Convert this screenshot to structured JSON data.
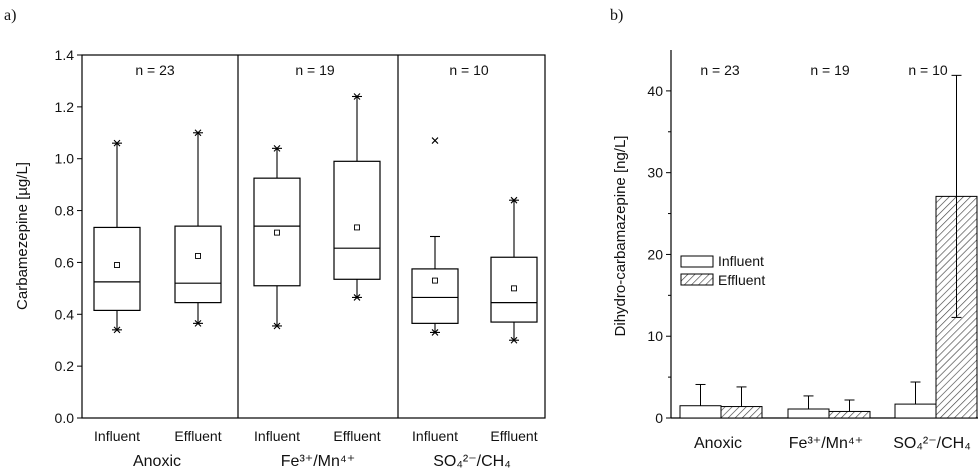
{
  "panels": [
    {
      "label": "a)",
      "chart_data": {
        "type": "box",
        "ylabel": "Carbamezepine [µg/L]",
        "ylim": [
          0,
          1.4
        ],
        "yticks": [
          0.0,
          0.2,
          0.4,
          0.6,
          0.8,
          1.0,
          1.2,
          1.4
        ],
        "groups": [
          {
            "name": "Anoxic",
            "n_label": "n = 23",
            "boxes": [
              {
                "name": "Influent",
                "whisker_low": 0.34,
                "q1": 0.415,
                "median": 0.525,
                "q3": 0.735,
                "whisker_high": 1.06,
                "mean": 0.59,
                "outliers": [
                  0.34,
                  1.06
                ]
              },
              {
                "name": "Effluent",
                "whisker_low": 0.365,
                "q1": 0.445,
                "median": 0.52,
                "q3": 0.74,
                "whisker_high": 1.1,
                "mean": 0.625,
                "outliers": [
                  0.365,
                  1.1
                ]
              }
            ]
          },
          {
            "name": "Fe³⁺/Mn⁴⁺",
            "n_label": "n = 19",
            "boxes": [
              {
                "name": "Influent",
                "whisker_low": 0.355,
                "q1": 0.51,
                "median": 0.74,
                "q3": 0.925,
                "whisker_high": 1.04,
                "mean": 0.715,
                "outliers": [
                  0.355,
                  1.04
                ]
              },
              {
                "name": "Effluent",
                "whisker_low": 0.465,
                "q1": 0.535,
                "median": 0.655,
                "q3": 0.99,
                "whisker_high": 1.24,
                "mean": 0.735,
                "outliers": [
                  0.465,
                  1.24
                ]
              }
            ]
          },
          {
            "name": "SO₄²⁻/CH₄",
            "n_label": "n = 10",
            "boxes": [
              {
                "name": "Influent",
                "whisker_low": 0.33,
                "q1": 0.365,
                "median": 0.465,
                "q3": 0.575,
                "whisker_high": 0.7,
                "mean": 0.53,
                "outliers": [
                  0.33,
                  1.07
                ]
              },
              {
                "name": "Effluent",
                "whisker_low": 0.3,
                "q1": 0.37,
                "median": 0.445,
                "q3": 0.62,
                "whisker_high": 0.84,
                "mean": 0.5,
                "outliers": [
                  0.3,
                  0.84
                ]
              }
            ]
          }
        ]
      }
    },
    {
      "label": "b)",
      "chart_data": {
        "type": "bar",
        "ylabel": "Dihydro-carbamazepine [ng/L]",
        "ylim": [
          0,
          45
        ],
        "yticks": [
          0,
          10,
          20,
          30,
          40
        ],
        "categories": [
          "Anoxic",
          "Fe³⁺/Mn⁴⁺",
          "SO₄²⁻/CH₄"
        ],
        "n_labels": [
          "n = 23",
          "n = 19",
          "n = 10"
        ],
        "series": [
          {
            "name": "Influent",
            "values": [
              1.5,
              1.1,
              1.7
            ],
            "errors": [
              2.6,
              1.6,
              2.7
            ]
          },
          {
            "name": "Effluent",
            "values": [
              1.4,
              0.8,
              27.1
            ],
            "errors": [
              2.4,
              1.4,
              14.8
            ]
          }
        ],
        "legend_position": "left"
      }
    }
  ]
}
